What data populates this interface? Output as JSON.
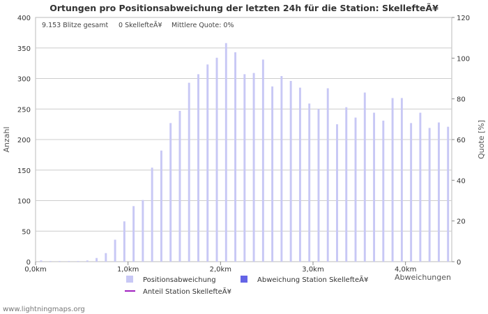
{
  "chart_data": {
    "type": "bar",
    "title": "Ortungen pro Positionsabweichung der letzten 24h für die Station: SkellefteÃ¥",
    "info": {
      "total": "9.153 Blitze gesamt",
      "station": "0 SkellefteÃ¥",
      "quote": "Mittlere Quote: 0%"
    },
    "ylabel_left": "Anzahl",
    "ylabel_right": "Quote [%]",
    "xlabel": "Abweichungen",
    "ylim": [
      0,
      400
    ],
    "ylim_right": [
      0,
      120
    ],
    "yticks": [
      0,
      50,
      100,
      150,
      200,
      250,
      300,
      350,
      400
    ],
    "yticks_right": [
      0,
      20,
      40,
      60,
      80,
      100,
      120
    ],
    "xlim_km": [
      0,
      4.5
    ],
    "xticks": [
      {
        "value": 0,
        "label": "0,0km"
      },
      {
        "value": 1,
        "label": "1,0km"
      },
      {
        "value": 2,
        "label": "2,0km"
      },
      {
        "value": 3,
        "label": "3,0km"
      },
      {
        "value": 4,
        "label": "4,0km"
      }
    ],
    "bin_width_km": 0.1,
    "series": [
      {
        "name": "Positionsabweichung",
        "color": "#c8c8f5",
        "values": [
          2,
          1,
          1,
          1,
          1,
          2,
          6,
          14,
          36,
          66,
          91,
          101,
          154,
          182,
          227,
          247,
          293,
          307,
          323,
          334,
          358,
          343,
          307,
          309,
          331,
          287,
          304,
          296,
          285,
          259,
          250,
          284,
          225,
          253,
          236,
          277,
          244,
          231,
          268,
          268,
          227,
          244,
          219,
          228,
          221
        ]
      },
      {
        "name": "Abweichung Station SkellefteÃ¥",
        "color": "#6464e6",
        "values": []
      },
      {
        "name": "Anteil Station SkellefteÃ¥",
        "color": "#a020c0",
        "values": []
      }
    ]
  },
  "footer": "www.lightningmaps.org"
}
